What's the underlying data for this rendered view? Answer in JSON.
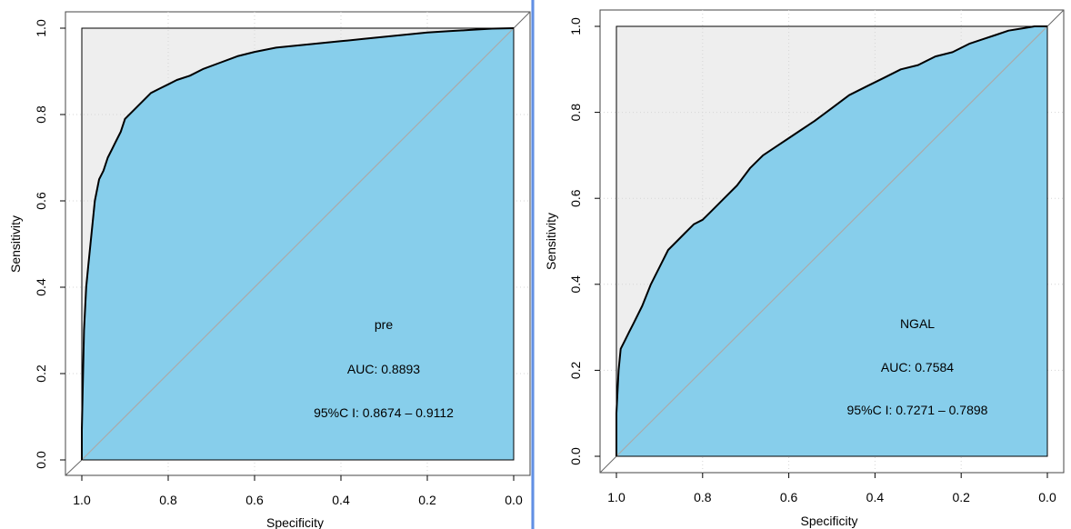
{
  "chart_data": [
    {
      "type": "line",
      "xlabel": "Specificity",
      "ylabel": "Sensitivity",
      "xlim": [
        1.0,
        0.0
      ],
      "ylim": [
        0.0,
        1.0
      ],
      "x_ticks": [
        "1.0",
        "0.8",
        "0.6",
        "0.4",
        "0.2",
        "0.0"
      ],
      "y_ticks": [
        "0.0",
        "0.2",
        "0.4",
        "0.6",
        "0.8",
        "1.0"
      ],
      "grid": true,
      "fill_colors": {
        "auc": "#87ceeb",
        "outside": "#eeeeee"
      },
      "diagonal_color": "#aaaaaa",
      "annotations": [
        "pre",
        "AUC: 0.8893",
        "95%C I: 0.8674 – 0.9112"
      ],
      "series": [
        {
          "x": [
            1.0,
            1.0,
            0.995,
            0.99,
            0.985,
            0.98,
            0.975,
            0.97,
            0.96,
            0.95,
            0.94,
            0.93,
            0.92,
            0.91,
            0.9,
            0.88,
            0.86,
            0.84,
            0.82,
            0.8,
            0.78,
            0.75,
            0.72,
            0.68,
            0.64,
            0.6,
            0.55,
            0.5,
            0.45,
            0.4,
            0.35,
            0.3,
            0.25,
            0.2,
            0.15,
            0.1,
            0.05,
            0.0
          ],
          "y": [
            0.0,
            0.07,
            0.3,
            0.4,
            0.45,
            0.5,
            0.55,
            0.6,
            0.65,
            0.67,
            0.7,
            0.72,
            0.74,
            0.76,
            0.79,
            0.81,
            0.83,
            0.85,
            0.86,
            0.87,
            0.88,
            0.89,
            0.905,
            0.92,
            0.935,
            0.945,
            0.955,
            0.96,
            0.965,
            0.97,
            0.975,
            0.98,
            0.985,
            0.99,
            0.993,
            0.996,
            0.999,
            1.0
          ]
        }
      ]
    },
    {
      "type": "line",
      "xlabel": "Specificity",
      "ylabel": "Sensitivity",
      "xlim": [
        1.0,
        0.0
      ],
      "ylim": [
        0.0,
        1.0
      ],
      "x_ticks": [
        "1.0",
        "0.8",
        "0.6",
        "0.4",
        "0.2",
        "0.0"
      ],
      "y_ticks": [
        "0.0",
        "0.2",
        "0.4",
        "0.6",
        "0.8",
        "1.0"
      ],
      "grid": true,
      "fill_colors": {
        "auc": "#87ceeb",
        "outside": "#eeeeee"
      },
      "diagonal_color": "#aaaaaa",
      "annotations": [
        "NGAL",
        "AUC: 0.7584",
        "95%C I: 0.7271 – 0.7898"
      ],
      "series": [
        {
          "x": [
            1.0,
            1.0,
            0.995,
            0.99,
            0.98,
            0.97,
            0.96,
            0.94,
            0.92,
            0.9,
            0.88,
            0.86,
            0.84,
            0.82,
            0.8,
            0.78,
            0.75,
            0.72,
            0.69,
            0.66,
            0.63,
            0.6,
            0.57,
            0.54,
            0.5,
            0.46,
            0.42,
            0.38,
            0.34,
            0.3,
            0.26,
            0.22,
            0.18,
            0.15,
            0.12,
            0.09,
            0.06,
            0.03,
            0.0
          ],
          "y": [
            0.0,
            0.1,
            0.2,
            0.25,
            0.27,
            0.29,
            0.31,
            0.35,
            0.4,
            0.44,
            0.48,
            0.5,
            0.52,
            0.54,
            0.55,
            0.57,
            0.6,
            0.63,
            0.67,
            0.7,
            0.72,
            0.74,
            0.76,
            0.78,
            0.81,
            0.84,
            0.86,
            0.88,
            0.9,
            0.91,
            0.93,
            0.94,
            0.96,
            0.97,
            0.98,
            0.99,
            0.995,
            1.0,
            1.0
          ]
        }
      ]
    }
  ]
}
